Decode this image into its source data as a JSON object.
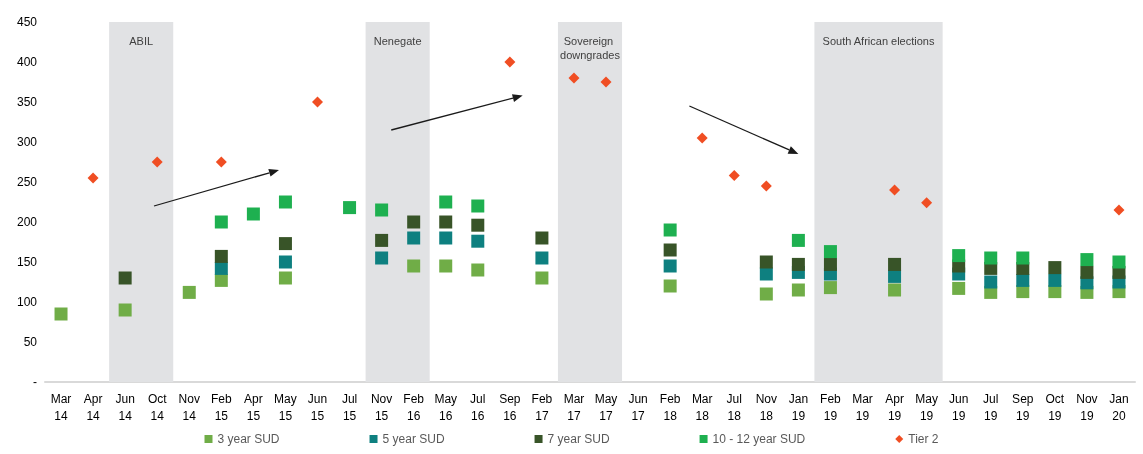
{
  "chart_data": {
    "type": "scatter",
    "categories": [
      "Mar 14",
      "Apr 14",
      "Jun 14",
      "Oct 14",
      "Nov 14",
      "Feb 15",
      "Apr 15",
      "May 15",
      "Jun 15",
      "Jul 15",
      "Nov 15",
      "Feb 16",
      "May 16",
      "Jul 16",
      "Sep 16",
      "Feb 17",
      "Mar 17",
      "May 17",
      "Jun 17",
      "Feb 18",
      "Mar 18",
      "Jul 18",
      "Nov 18",
      "Jan 19",
      "Feb 19",
      "Mar 19",
      "Apr 19",
      "May 19",
      "Jun 19",
      "Jul 19",
      "Sep 19",
      "Oct 19",
      "Nov 19",
      "Jan 20"
    ],
    "series": [
      {
        "name": "3 year SUD",
        "color": "#70ad47",
        "marker": "square",
        "values": [
          85,
          null,
          90,
          null,
          112,
          127,
          null,
          130,
          null,
          null,
          null,
          145,
          145,
          140,
          null,
          130,
          null,
          null,
          null,
          120,
          null,
          null,
          110,
          115,
          118,
          null,
          115,
          null,
          117,
          112,
          113,
          113,
          112,
          113
        ]
      },
      {
        "name": "5 year SUD",
        "color": "#0e8080",
        "marker": "square",
        "values": [
          null,
          null,
          null,
          null,
          null,
          142,
          null,
          150,
          null,
          null,
          155,
          180,
          180,
          176,
          null,
          155,
          null,
          null,
          null,
          145,
          null,
          null,
          135,
          137,
          135,
          null,
          132,
          null,
          135,
          125,
          127,
          127,
          124,
          125
        ]
      },
      {
        "name": "7 year SUD",
        "color": "#385428",
        "marker": "square",
        "values": [
          null,
          null,
          130,
          null,
          null,
          157,
          null,
          173,
          null,
          null,
          177,
          200,
          200,
          196,
          null,
          180,
          null,
          null,
          null,
          165,
          null,
          null,
          150,
          147,
          147,
          null,
          147,
          null,
          145,
          142,
          142,
          143,
          137,
          137
        ]
      },
      {
        "name": "10 - 12 year SUD",
        "color": "#1eb050",
        "marker": "square",
        "values": [
          null,
          null,
          null,
          null,
          null,
          200,
          210,
          225,
          null,
          218,
          215,
          null,
          225,
          220,
          null,
          null,
          null,
          null,
          null,
          190,
          null,
          null,
          null,
          177,
          163,
          null,
          null,
          null,
          158,
          155,
          155,
          null,
          153,
          150
        ]
      },
      {
        "name": "Tier 2",
        "color": "#f04e23",
        "marker": "diamond",
        "values": [
          null,
          255,
          null,
          275,
          null,
          275,
          null,
          null,
          350,
          null,
          null,
          null,
          null,
          null,
          400,
          null,
          380,
          375,
          null,
          null,
          305,
          258,
          245,
          null,
          null,
          null,
          240,
          224,
          null,
          null,
          null,
          null,
          null,
          215
        ]
      }
    ],
    "ylim": [
      0,
      450
    ],
    "yticks": [
      {
        "value": 0,
        "label": "-"
      },
      50,
      100,
      150,
      200,
      250,
      300,
      350,
      400,
      450
    ],
    "grid": false,
    "legend": "bottom",
    "bands": [
      {
        "axis": "x",
        "from": "Jun 14",
        "to": "Oct 14",
        "label": "ABIL",
        "color": "#e1e2e4"
      },
      {
        "axis": "x",
        "from": "Nov 15",
        "to": "Feb 16",
        "label": "Nenegate",
        "color": "#e1e2e4"
      },
      {
        "axis": "x",
        "from": "Mar 17",
        "to": "May 17",
        "label": "Sovereign downgrades",
        "color": "#e1e2e4"
      },
      {
        "axis": "x",
        "from": "Feb 19",
        "to": "May 19",
        "label": "South African elections",
        "color": "#e1e2e4"
      }
    ]
  }
}
